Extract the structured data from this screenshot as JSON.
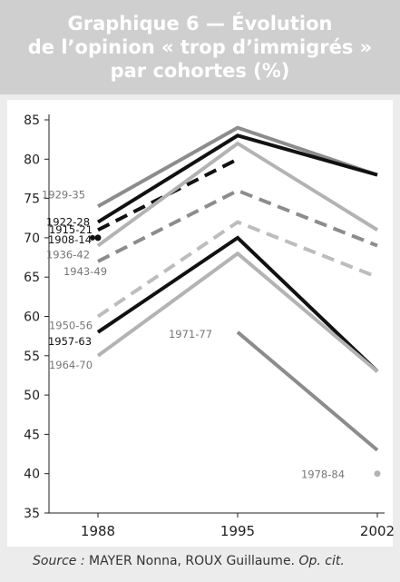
{
  "title_lines": [
    "Graphique 6 — Évolution",
    "de l’opinion « trop d’immigrés »",
    "par cohortes (%)"
  ],
  "source": {
    "label": "Source :",
    "authors": "MAYER Nonna, ROUX Guillaume.",
    "ref": "Op. cit."
  },
  "chart_data": {
    "type": "line",
    "title": "Graphique 6 — Évolution de l’opinion « trop d’immigrés » par cohortes (%)",
    "x": [
      "1988",
      "1995",
      "2002"
    ],
    "ylim": [
      35,
      85
    ],
    "yticks": [
      35,
      40,
      45,
      50,
      55,
      60,
      65,
      70,
      75,
      80,
      85
    ],
    "grid": false,
    "series": [
      {
        "name": "1929-35",
        "values": [
          74,
          84,
          78
        ],
        "color": "#8c8c8c",
        "dash": "solid"
      },
      {
        "name": "1922-28",
        "values": [
          72,
          83,
          78
        ],
        "color": "#111111",
        "dash": "solid"
      },
      {
        "name": "1915-21",
        "values": [
          71,
          80,
          null
        ],
        "color": "#111111",
        "dash": "dash"
      },
      {
        "name": "1908-14",
        "values": [
          70,
          null,
          null
        ],
        "color": "#111111",
        "dash": "dot"
      },
      {
        "name": "1936-42",
        "values": [
          69,
          82,
          71
        ],
        "color": "#b3b3b3",
        "dash": "solid"
      },
      {
        "name": "1943-49",
        "values": [
          67,
          76,
          69
        ],
        "color": "#8c8c8c",
        "dash": "dash"
      },
      {
        "name": "1950-56",
        "values": [
          60,
          72,
          65
        ],
        "color": "#bdbdbd",
        "dash": "dash"
      },
      {
        "name": "1957-63",
        "values": [
          58,
          70,
          53
        ],
        "color": "#111111",
        "dash": "solid"
      },
      {
        "name": "1964-70",
        "values": [
          55,
          68,
          53
        ],
        "color": "#b3b3b3",
        "dash": "solid"
      },
      {
        "name": "1971-77",
        "values": [
          null,
          58,
          43
        ],
        "color": "#8c8c8c",
        "dash": "solid"
      },
      {
        "name": "1978-84",
        "values": [
          null,
          null,
          40
        ],
        "color": "#b3b3b3",
        "dash": "dot"
      }
    ]
  }
}
